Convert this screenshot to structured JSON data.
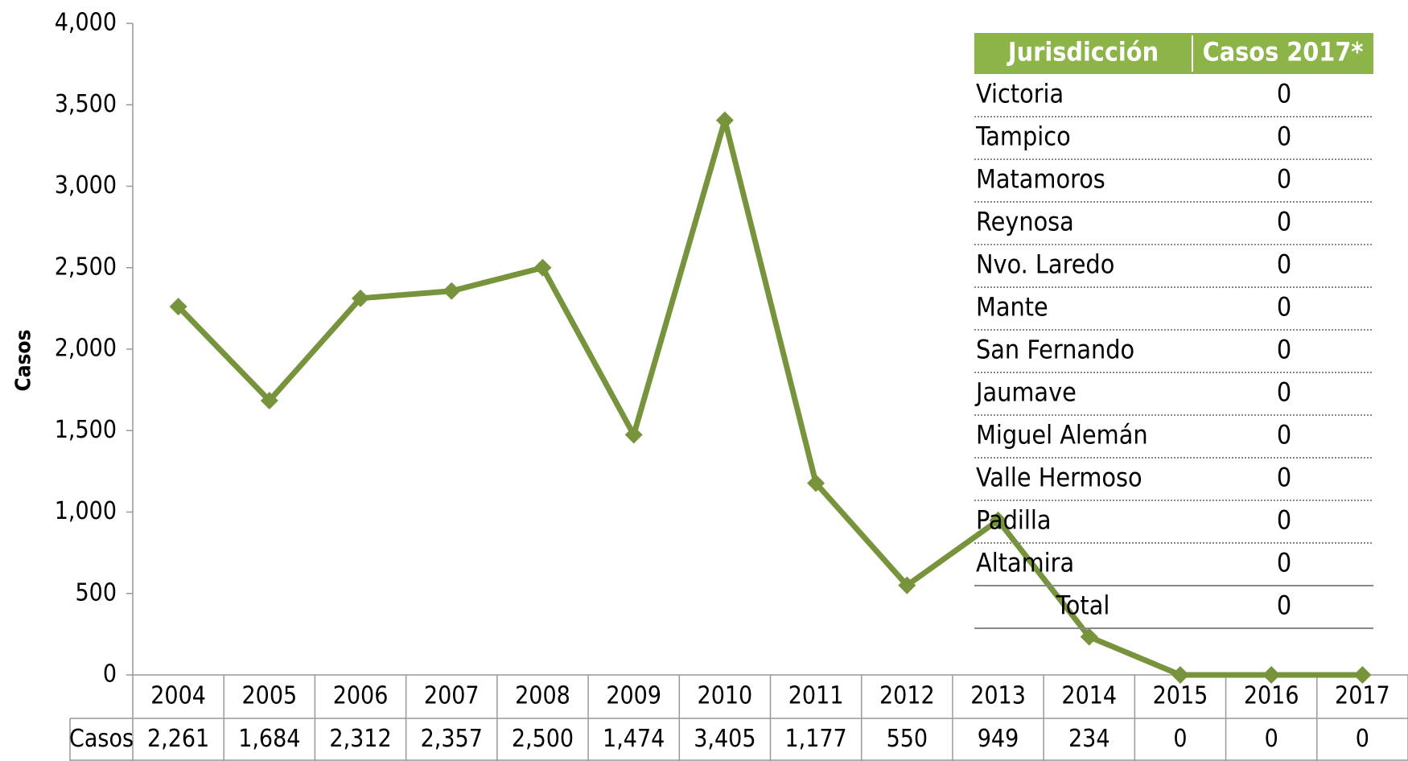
{
  "chart_data": {
    "type": "line",
    "y_label": "Casos",
    "categories": [
      "2004",
      "2005",
      "2006",
      "2007",
      "2008",
      "2009",
      "2010",
      "2011",
      "2012",
      "2013",
      "2014",
      "2015",
      "2016",
      "2017"
    ],
    "series": [
      {
        "name": "Casos",
        "color": "#77933c",
        "values": [
          2261,
          1684,
          2312,
          2357,
          2500,
          1474,
          3405,
          1177,
          550,
          949,
          234,
          0,
          0,
          0
        ],
        "value_labels": [
          "2,261",
          "1,684",
          "2,312",
          "2,357",
          "2,500",
          "1,474",
          "3,405",
          "1,177",
          "550",
          "949",
          "234",
          "0",
          "0",
          "0"
        ]
      }
    ],
    "ylim": [
      0,
      4000
    ],
    "yticks": [
      0,
      500,
      {
        "value": 1000,
        "label": "1,000"
      },
      {
        "value": 1500,
        "label": "1,500"
      },
      {
        "value": 2000,
        "label": "2,000"
      },
      {
        "value": 2500,
        "label": "2,500"
      },
      {
        "value": 3000,
        "label": "3,000"
      },
      {
        "value": 3500,
        "label": "3,500"
      },
      {
        "value": 4000,
        "label": "4,000"
      }
    ]
  },
  "table": {
    "header": [
      "Jurisdicción",
      "Casos 2017*"
    ],
    "rows": [
      [
        "Victoria",
        0
      ],
      [
        "Tampico",
        0
      ],
      [
        "Matamoros",
        0
      ],
      [
        "Reynosa",
        0
      ],
      [
        "Nvo. Laredo",
        0
      ],
      [
        "Mante",
        0
      ],
      [
        "San Fernando",
        0
      ],
      [
        "Jaumave",
        0
      ],
      [
        "Miguel Alemán",
        0
      ],
      [
        "Valle Hermoso",
        0
      ],
      [
        "Padilla",
        0
      ],
      [
        "Altamira",
        0
      ]
    ],
    "total": [
      "Total",
      0
    ]
  }
}
